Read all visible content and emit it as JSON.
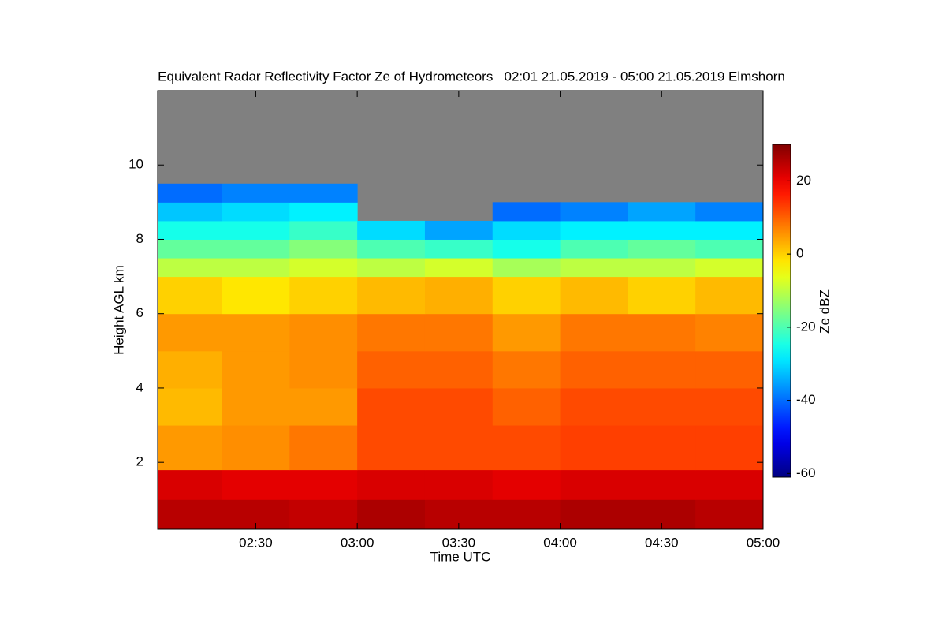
{
  "chart_data": {
    "type": "heatmap",
    "title": "Equivalent Radar Reflectivity Factor Ze of Hydrometeors   02:01 21.05.2019 - 05:00 21.05.2019 Elmshorn",
    "x_label": "Time UTC",
    "y_label": "Height AGL km",
    "colorbar_label": "Ze dBZ",
    "colormap": "jet",
    "missing_color": "#808080",
    "xlim": [
      "02:01",
      "05:00"
    ],
    "xticks": [
      "02:30",
      "03:00",
      "03:30",
      "04:00",
      "04:30",
      "05:00"
    ],
    "ylim": [
      0.2,
      12
    ],
    "yticks": [
      2,
      4,
      6,
      8,
      10
    ],
    "clim": [
      -61,
      30
    ],
    "cticks": [
      -60,
      -40,
      -20,
      0,
      20
    ],
    "x_edges": [
      "02:01",
      "02:20",
      "02:40",
      "03:00",
      "03:20",
      "03:40",
      "04:00",
      "04:20",
      "04:40",
      "05:00"
    ],
    "y_edges": [
      0.2,
      1.0,
      1.8,
      3,
      4,
      5,
      6,
      7,
      7.5,
      8,
      8.5,
      9,
      9.5,
      12
    ],
    "z": [
      [
        25,
        25,
        24,
        26,
        25,
        25,
        26,
        26,
        25
      ],
      [
        22,
        21,
        21,
        22,
        22,
        21,
        22,
        22,
        22
      ],
      [
        5,
        6,
        8,
        12,
        12,
        12,
        13,
        13,
        13
      ],
      [
        2,
        5,
        5,
        12,
        12,
        10,
        12,
        12,
        12
      ],
      [
        3,
        5,
        6,
        10,
        10,
        8,
        10,
        10,
        10
      ],
      [
        5,
        5,
        6,
        8,
        8,
        5,
        8,
        8,
        7
      ],
      [
        0,
        -2,
        0,
        2,
        3,
        0,
        2,
        0,
        2
      ],
      [
        -10,
        -10,
        -8,
        -10,
        -8,
        -12,
        -10,
        -10,
        -8
      ],
      [
        -18,
        -18,
        -15,
        -20,
        -22,
        -25,
        -20,
        -18,
        -20
      ],
      [
        -25,
        -25,
        -22,
        -30,
        -35,
        -30,
        -28,
        -28,
        -28
      ],
      [
        -32,
        -30,
        -28,
        null,
        null,
        -40,
        -38,
        -35,
        -38
      ],
      [
        -40,
        -38,
        -38,
        null,
        null,
        null,
        null,
        null,
        null
      ],
      [
        null,
        null,
        null,
        null,
        null,
        null,
        null,
        null,
        null
      ]
    ]
  }
}
